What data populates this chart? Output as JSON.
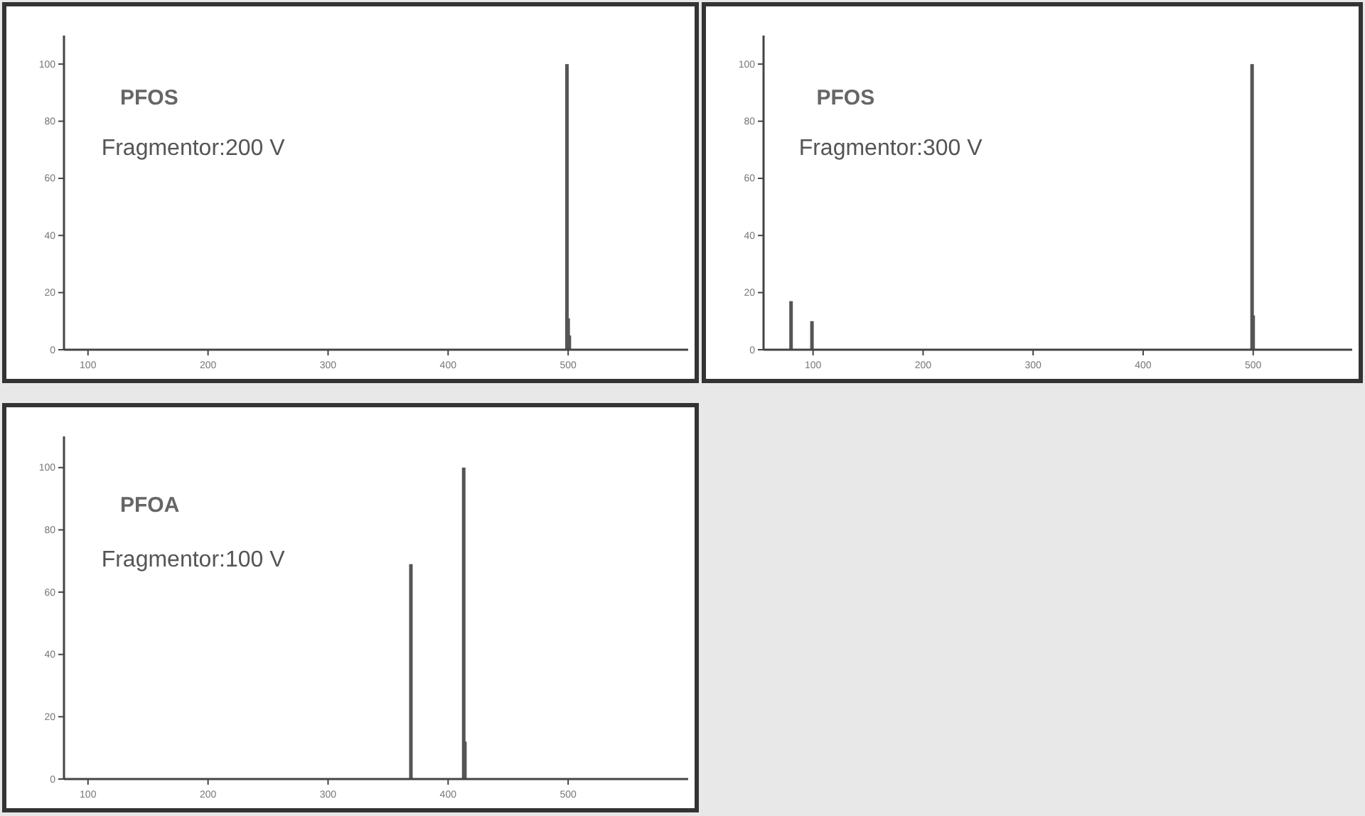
{
  "chart_data": [
    {
      "type": "bar",
      "title": "PFOS",
      "subtitle": "Fragmentor:200 V",
      "x": [
        499,
        500,
        501
      ],
      "values": [
        100,
        11,
        5
      ],
      "color": "#555555",
      "xlim": [
        80,
        600
      ],
      "xticks": [
        100,
        200,
        300,
        400,
        500
      ],
      "ylim": [
        0,
        110
      ],
      "yticks": [
        0,
        20,
        40,
        60,
        80,
        100
      ],
      "grid": false
    },
    {
      "type": "bar",
      "title": "PFOS",
      "subtitle": "Fragmentor:300 V",
      "x": [
        80,
        99,
        499,
        500
      ],
      "values": [
        17,
        10,
        100,
        12
      ],
      "color": "#555555",
      "xlim": [
        55,
        590
      ],
      "xticks": [
        100,
        200,
        300,
        400,
        500
      ],
      "ylim": [
        0,
        110
      ],
      "yticks": [
        0,
        20,
        40,
        60,
        80,
        100
      ],
      "grid": false
    },
    {
      "type": "bar",
      "title": "PFOA",
      "subtitle": "Fragmentor:100 V",
      "x": [
        369,
        413,
        414
      ],
      "values": [
        69,
        100,
        12
      ],
      "color": "#555555",
      "xlim": [
        80,
        600
      ],
      "xticks": [
        100,
        200,
        300,
        400,
        500
      ],
      "ylim": [
        0,
        110
      ],
      "yticks": [
        0,
        20,
        40,
        60,
        80,
        100
      ],
      "grid": false
    }
  ]
}
